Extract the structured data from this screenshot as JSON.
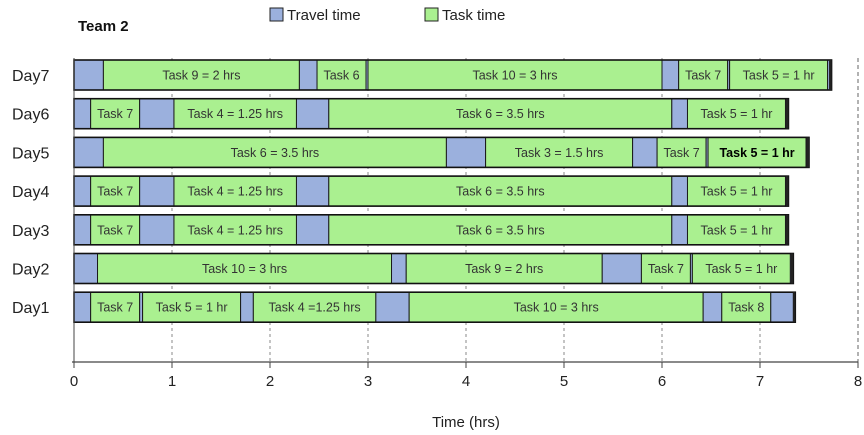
{
  "chart_data": {
    "type": "bar",
    "orientation": "horizontal",
    "stacked": true,
    "title": "Team 2",
    "xlabel": "Time (hrs)",
    "xlim": [
      0,
      8
    ],
    "xticks": [
      "0",
      "1",
      "2",
      "3",
      "4",
      "5",
      "6",
      "7",
      "8"
    ],
    "grid": "vertical dashed",
    "legend": [
      {
        "name": "Travel time",
        "color": "#9bb0dd"
      },
      {
        "name": "Task time",
        "color": "#aaf090"
      }
    ],
    "categories": [
      "Day7",
      "Day6",
      "Day5",
      "Day4",
      "Day3",
      "Day2",
      "Day1"
    ],
    "rows": [
      {
        "day": "Day7",
        "segments": [
          {
            "kind": "travel",
            "start": 0,
            "end": 0.3
          },
          {
            "kind": "task",
            "start": 0.3,
            "end": 2.3,
            "label": "Task 9 = 2 hrs"
          },
          {
            "kind": "travel",
            "start": 2.3,
            "end": 2.48
          },
          {
            "kind": "task",
            "start": 2.48,
            "end": 2.98,
            "label": "Task 6"
          },
          {
            "kind": "travel",
            "start": 2.98,
            "end": 3.0
          },
          {
            "kind": "task",
            "start": 3.0,
            "end": 6.0,
            "label": "Task 10 = 3 hrs"
          },
          {
            "kind": "travel",
            "start": 6.0,
            "end": 6.17
          },
          {
            "kind": "task",
            "start": 6.17,
            "end": 6.67,
            "label": "Task 7"
          },
          {
            "kind": "travel",
            "start": 6.67,
            "end": 6.69
          },
          {
            "kind": "task",
            "start": 6.69,
            "end": 7.69,
            "label": "Task 5 = 1 hr"
          },
          {
            "kind": "travel",
            "start": 7.69,
            "end": 7.73
          }
        ]
      },
      {
        "day": "Day6",
        "segments": [
          {
            "kind": "travel",
            "start": 0,
            "end": 0.17
          },
          {
            "kind": "task",
            "start": 0.17,
            "end": 0.67,
            "label": "Task 7"
          },
          {
            "kind": "travel",
            "start": 0.67,
            "end": 1.02
          },
          {
            "kind": "task",
            "start": 1.02,
            "end": 2.27,
            "label": "Task 4 = 1.25 hrs"
          },
          {
            "kind": "travel",
            "start": 2.27,
            "end": 2.6
          },
          {
            "kind": "task",
            "start": 2.6,
            "end": 6.1,
            "label": "Task 6 = 3.5 hrs"
          },
          {
            "kind": "travel",
            "start": 6.1,
            "end": 6.26
          },
          {
            "kind": "task",
            "start": 6.26,
            "end": 7.26,
            "label": "Task 5 = 1 hr"
          },
          {
            "kind": "travel",
            "start": 7.26,
            "end": 7.29
          }
        ]
      },
      {
        "day": "Day5",
        "segments": [
          {
            "kind": "travel",
            "start": 0,
            "end": 0.3
          },
          {
            "kind": "task",
            "start": 0.3,
            "end": 3.8,
            "label": "Task 6 = 3.5 hrs"
          },
          {
            "kind": "travel",
            "start": 3.8,
            "end": 4.2
          },
          {
            "kind": "task",
            "start": 4.2,
            "end": 5.7,
            "label": "Task 3 = 1.5 hrs"
          },
          {
            "kind": "travel",
            "start": 5.7,
            "end": 5.95
          },
          {
            "kind": "task",
            "start": 5.95,
            "end": 6.45,
            "label": "Task 7"
          },
          {
            "kind": "travel",
            "start": 6.45,
            "end": 6.47
          },
          {
            "kind": "task",
            "start": 6.47,
            "end": 7.47,
            "label": "Task 5 = 1 hr",
            "bold": true
          },
          {
            "kind": "travel",
            "start": 7.47,
            "end": 7.5
          }
        ]
      },
      {
        "day": "Day4",
        "segments": [
          {
            "kind": "travel",
            "start": 0,
            "end": 0.17
          },
          {
            "kind": "task",
            "start": 0.17,
            "end": 0.67,
            "label": "Task 7"
          },
          {
            "kind": "travel",
            "start": 0.67,
            "end": 1.02
          },
          {
            "kind": "task",
            "start": 1.02,
            "end": 2.27,
            "label": "Task 4 = 1.25 hrs"
          },
          {
            "kind": "travel",
            "start": 2.27,
            "end": 2.6
          },
          {
            "kind": "task",
            "start": 2.6,
            "end": 6.1,
            "label": "Task 6 = 3.5 hrs"
          },
          {
            "kind": "travel",
            "start": 6.1,
            "end": 6.26
          },
          {
            "kind": "task",
            "start": 6.26,
            "end": 7.26,
            "label": "Task 5 = 1 hr"
          },
          {
            "kind": "travel",
            "start": 7.26,
            "end": 7.29
          }
        ]
      },
      {
        "day": "Day3",
        "segments": [
          {
            "kind": "travel",
            "start": 0,
            "end": 0.17
          },
          {
            "kind": "task",
            "start": 0.17,
            "end": 0.67,
            "label": "Task 7"
          },
          {
            "kind": "travel",
            "start": 0.67,
            "end": 1.02
          },
          {
            "kind": "task",
            "start": 1.02,
            "end": 2.27,
            "label": "Task 4 = 1.25 hrs"
          },
          {
            "kind": "travel",
            "start": 2.27,
            "end": 2.6
          },
          {
            "kind": "task",
            "start": 2.6,
            "end": 6.1,
            "label": "Task 6 = 3.5 hrs"
          },
          {
            "kind": "travel",
            "start": 6.1,
            "end": 6.26
          },
          {
            "kind": "task",
            "start": 6.26,
            "end": 7.26,
            "label": "Task 5 = 1 hr"
          },
          {
            "kind": "travel",
            "start": 7.26,
            "end": 7.29
          }
        ]
      },
      {
        "day": "Day2",
        "segments": [
          {
            "kind": "travel",
            "start": 0,
            "end": 0.24
          },
          {
            "kind": "task",
            "start": 0.24,
            "end": 3.24,
            "label": "Task 10 = 3 hrs"
          },
          {
            "kind": "travel",
            "start": 3.24,
            "end": 3.39
          },
          {
            "kind": "task",
            "start": 3.39,
            "end": 5.39,
            "label": "Task 9 = 2 hrs"
          },
          {
            "kind": "travel",
            "start": 5.39,
            "end": 5.79
          },
          {
            "kind": "task",
            "start": 5.79,
            "end": 6.29,
            "label": "Task 7"
          },
          {
            "kind": "travel",
            "start": 6.29,
            "end": 6.31
          },
          {
            "kind": "task",
            "start": 6.31,
            "end": 7.31,
            "label": "Task 5 = 1 hr"
          },
          {
            "kind": "travel",
            "start": 7.31,
            "end": 7.34
          }
        ]
      },
      {
        "day": "Day1",
        "segments": [
          {
            "kind": "travel",
            "start": 0,
            "end": 0.17
          },
          {
            "kind": "task",
            "start": 0.17,
            "end": 0.67,
            "label": "Task 7"
          },
          {
            "kind": "travel",
            "start": 0.67,
            "end": 0.7
          },
          {
            "kind": "task",
            "start": 0.7,
            "end": 1.7,
            "label": "Task 5 = 1 hr"
          },
          {
            "kind": "travel",
            "start": 1.7,
            "end": 1.83
          },
          {
            "kind": "task",
            "start": 1.83,
            "end": 3.08,
            "label": "Task 4 =1.25 hrs"
          },
          {
            "kind": "travel",
            "start": 3.08,
            "end": 3.42
          },
          {
            "kind": "task",
            "start": 3.42,
            "end": 6.42,
            "label": "Task 10 = 3 hrs"
          },
          {
            "kind": "travel",
            "start": 6.42,
            "end": 6.61
          },
          {
            "kind": "task",
            "start": 6.61,
            "end": 7.11,
            "label": "Task 8"
          },
          {
            "kind": "travel",
            "start": 7.11,
            "end": 7.36
          }
        ]
      }
    ]
  }
}
